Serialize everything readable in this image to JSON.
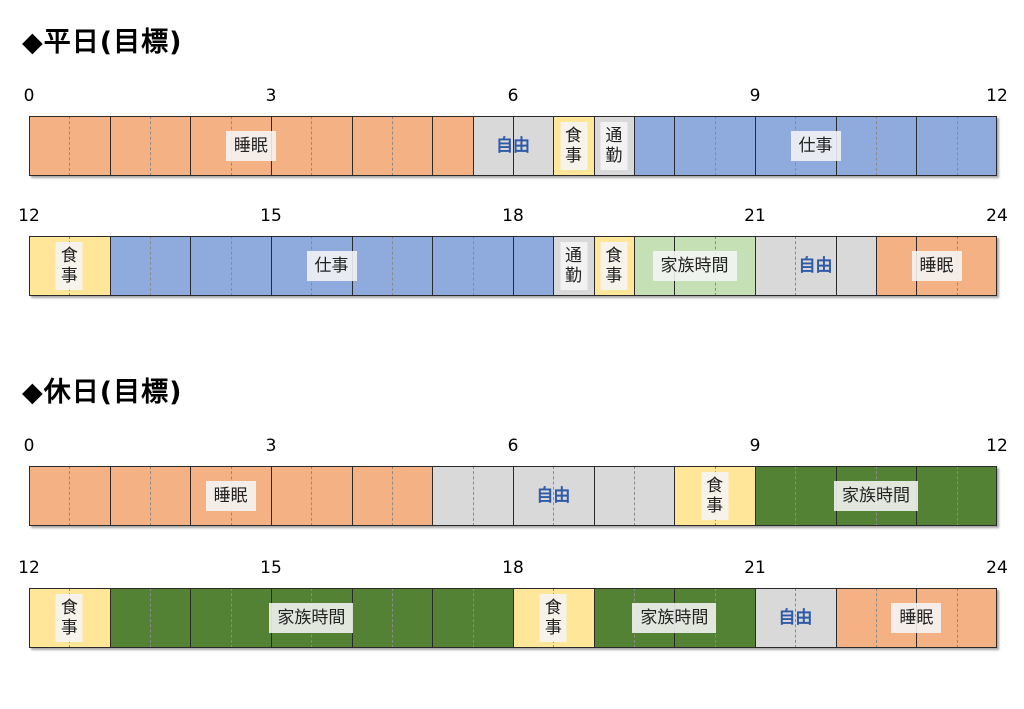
{
  "colors": {
    "sleep": "#f4b183",
    "free": "#d9d9d9",
    "meal": "#ffe699",
    "commute": "#d9d9d9",
    "work": "#8faadc",
    "family_light": "#c5e0b4",
    "family_dark": "#548235"
  },
  "sections": [
    {
      "title": "◆平日(目標)",
      "rows": [
        {
          "ticks": [
            "0",
            "3",
            "6",
            "9",
            "12"
          ],
          "segments": [
            {
              "start": 0,
              "end": 5.5,
              "color": "sleep",
              "label": "睡眠",
              "style": "plain"
            },
            {
              "start": 5.5,
              "end": 6.5,
              "color": "free",
              "label": "自由",
              "style": "bold"
            },
            {
              "start": 6.5,
              "end": 7,
              "color": "meal",
              "label": "食事",
              "style": "vertical"
            },
            {
              "start": 7,
              "end": 7.5,
              "color": "commute",
              "label": "通勤",
              "style": "vertical"
            },
            {
              "start": 7.5,
              "end": 12,
              "color": "work",
              "label": "仕事",
              "style": "plain"
            }
          ]
        },
        {
          "ticks": [
            "12",
            "15",
            "18",
            "21",
            "24"
          ],
          "segments": [
            {
              "start": 12,
              "end": 13,
              "color": "meal",
              "label": "食事",
              "style": "vertical"
            },
            {
              "start": 13,
              "end": 18.5,
              "color": "work",
              "label": "仕事",
              "style": "plain"
            },
            {
              "start": 18.5,
              "end": 19,
              "color": "commute",
              "label": "通勤",
              "style": "vertical"
            },
            {
              "start": 19,
              "end": 19.5,
              "color": "meal",
              "label": "食事",
              "style": "vertical"
            },
            {
              "start": 19.5,
              "end": 21,
              "color": "family_light",
              "label": "家族時間",
              "style": "plain"
            },
            {
              "start": 21,
              "end": 22.5,
              "color": "free",
              "label": "自由",
              "style": "bold"
            },
            {
              "start": 22.5,
              "end": 24,
              "color": "sleep",
              "label": "睡眠",
              "style": "plain"
            }
          ]
        }
      ]
    },
    {
      "title": "◆休日(目標)",
      "rows": [
        {
          "ticks": [
            "0",
            "3",
            "6",
            "9",
            "12"
          ],
          "segments": [
            {
              "start": 0,
              "end": 5,
              "color": "sleep",
              "label": "睡眠",
              "style": "plain"
            },
            {
              "start": 5,
              "end": 8,
              "color": "free",
              "label": "自由",
              "style": "bold"
            },
            {
              "start": 8,
              "end": 9,
              "color": "meal",
              "label": "食事",
              "style": "vertical"
            },
            {
              "start": 9,
              "end": 12,
              "color": "family_dark",
              "label": "家族時間",
              "style": "plain"
            }
          ]
        },
        {
          "ticks": [
            "12",
            "15",
            "18",
            "21",
            "24"
          ],
          "segments": [
            {
              "start": 12,
              "end": 13,
              "color": "meal",
              "label": "食事",
              "style": "vertical"
            },
            {
              "start": 13,
              "end": 18,
              "color": "family_dark",
              "label": "家族時間",
              "style": "plain"
            },
            {
              "start": 18,
              "end": 19,
              "color": "meal",
              "label": "食事",
              "style": "vertical"
            },
            {
              "start": 19,
              "end": 21,
              "color": "family_dark",
              "label": "家族時間",
              "style": "plain"
            },
            {
              "start": 21,
              "end": 22,
              "color": "free",
              "label": "自由",
              "style": "bold"
            },
            {
              "start": 22,
              "end": 24,
              "color": "sleep",
              "label": "睡眠",
              "style": "plain"
            }
          ]
        }
      ]
    }
  ]
}
